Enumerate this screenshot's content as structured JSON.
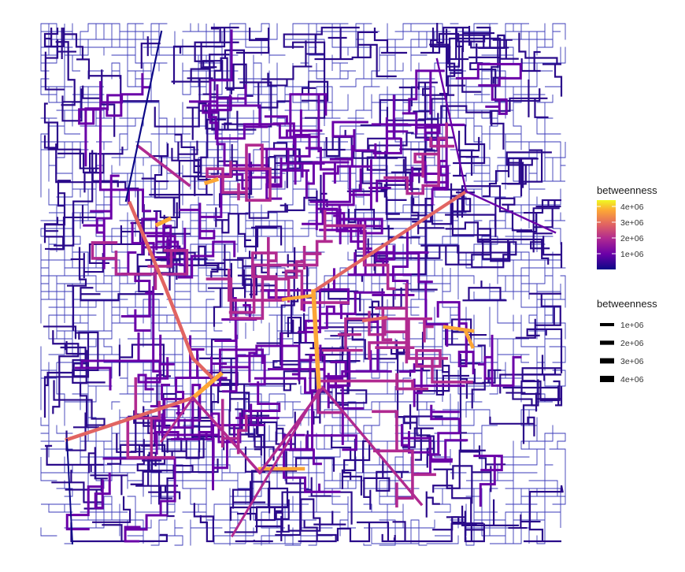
{
  "plot": {
    "network_style": "street-network grid, edges colored and sized by betweenness",
    "background": "#ffffff"
  },
  "legends": {
    "colour": {
      "title": "betweenness",
      "labels": [
        "4e+06",
        "3e+06",
        "2e+06",
        "1e+06"
      ],
      "values": [
        4000000,
        3000000,
        2000000,
        1000000
      ],
      "range": [
        0,
        4400000
      ],
      "gradient": [
        "#0d0887",
        "#6a00a8",
        "#b12a90",
        "#e16462",
        "#fca636",
        "#f0f921"
      ]
    },
    "size": {
      "title": "betweenness",
      "labels": [
        "1e+06",
        "2e+06",
        "3e+06",
        "4e+06"
      ],
      "values": [
        1000000,
        2000000,
        3000000,
        4000000
      ]
    }
  },
  "palette": {
    "low": "#0d0887",
    "mid_low": "#6a00a8",
    "mid": "#b12a90",
    "mid_high": "#e16462",
    "high": "#fca636",
    "top": "#f0f921"
  }
}
